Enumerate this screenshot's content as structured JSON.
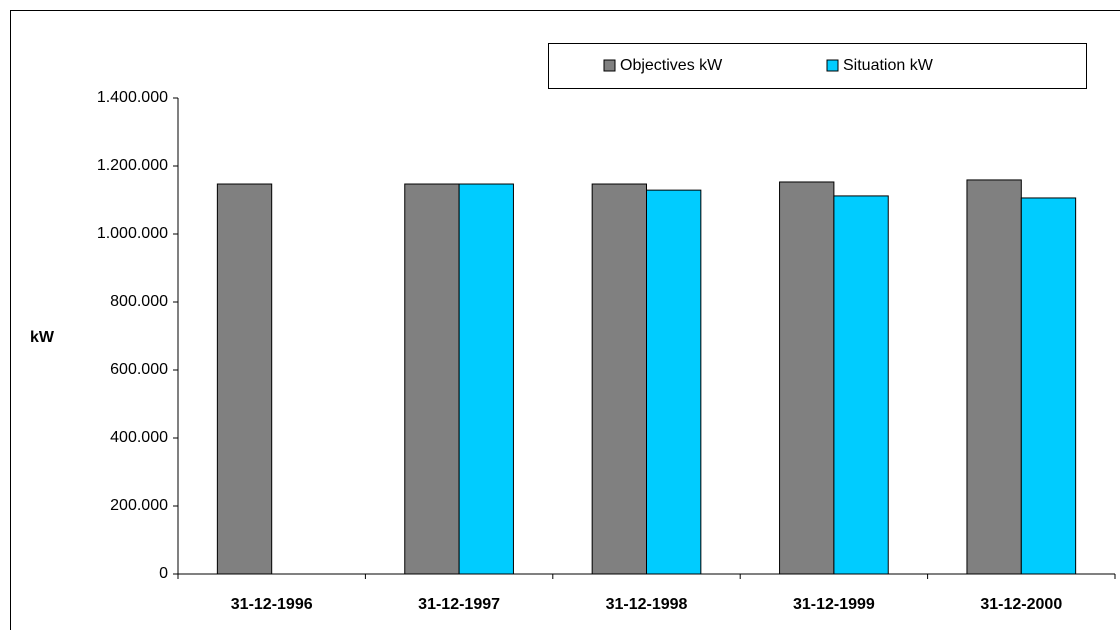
{
  "chart_data": {
    "type": "bar",
    "y_label": "kW",
    "categories": [
      "31-12-1996",
      "31-12-1997",
      "31-12-1998",
      "31-12-1999",
      "31-12-2000"
    ],
    "series": [
      {
        "name": "Objectives kW",
        "color": "#808080",
        "values": [
          1147000,
          1147000,
          1147000,
          1153000,
          1159000
        ]
      },
      {
        "name": "Situation kW",
        "color": "#00ccff",
        "values": [
          null,
          1147000,
          1129000,
          1112000,
          1106000
        ]
      }
    ],
    "ylim": [
      0,
      1400000
    ],
    "yticks": [
      0,
      {
        "value": 200000,
        "label": "200.000"
      },
      {
        "value": 400000,
        "label": "400.000"
      },
      {
        "value": 600000,
        "label": "600.000"
      },
      {
        "value": 800000,
        "label": "800.000"
      },
      {
        "value": 1000000,
        "label": "1.000.000"
      },
      {
        "value": 1200000,
        "label": "1.200.000"
      },
      {
        "value": 1400000,
        "label": "1.400.000"
      }
    ],
    "legend": "top-right"
  }
}
